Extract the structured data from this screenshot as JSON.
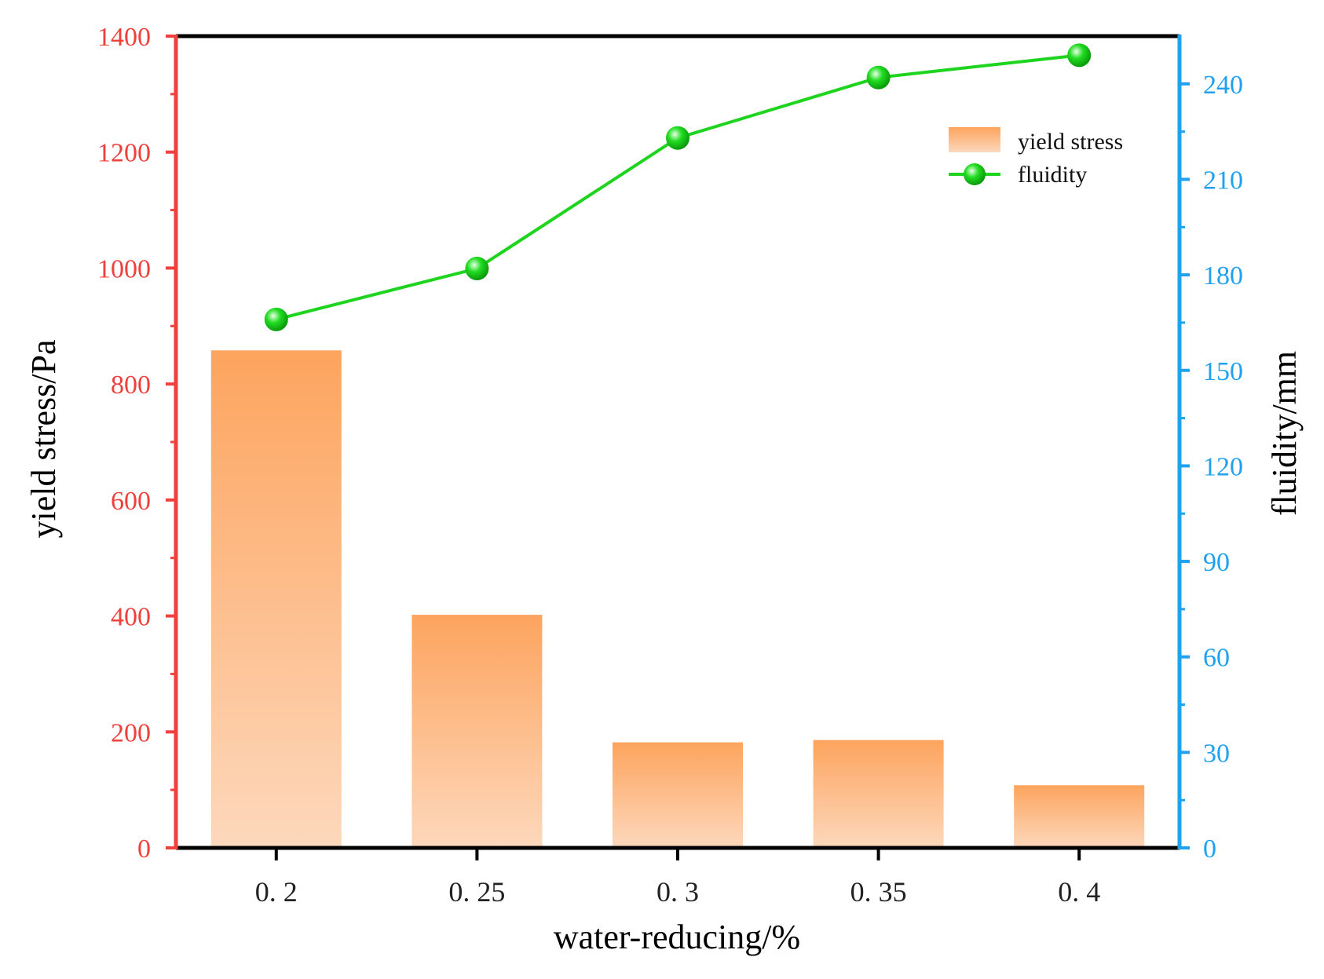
{
  "colors": {
    "left_axis": "#f0403c",
    "right_axis": "#1ea1ee",
    "frame": "#000000",
    "bar_top": "#fda45e",
    "bar_bottom": "#fdd8bc",
    "line": "#1ed41e",
    "marker": "#14cc14"
  },
  "chart_data": {
    "type": "bar",
    "categories": [
      "0. 2",
      "0. 25",
      "0. 3",
      "0. 35",
      "0. 4"
    ],
    "xlabel": "water-reducing/%",
    "ylabel": "yield stress/Pa",
    "y2label": "fluidity/mm",
    "ylim": [
      0,
      1400
    ],
    "y2lim": [
      0,
      255
    ],
    "yticks": [
      0,
      200,
      400,
      600,
      800,
      1000,
      1200,
      1400
    ],
    "y2ticks": [
      0,
      30,
      60,
      90,
      120,
      150,
      180,
      210,
      240
    ],
    "legend_position": "top-right",
    "series": [
      {
        "name": "yield stress",
        "type": "bar",
        "axis": "left",
        "values": [
          858,
          402,
          182,
          186,
          108
        ]
      },
      {
        "name": "fluidity",
        "type": "line",
        "axis": "right",
        "values": [
          166,
          182,
          223,
          242,
          249
        ]
      }
    ]
  }
}
